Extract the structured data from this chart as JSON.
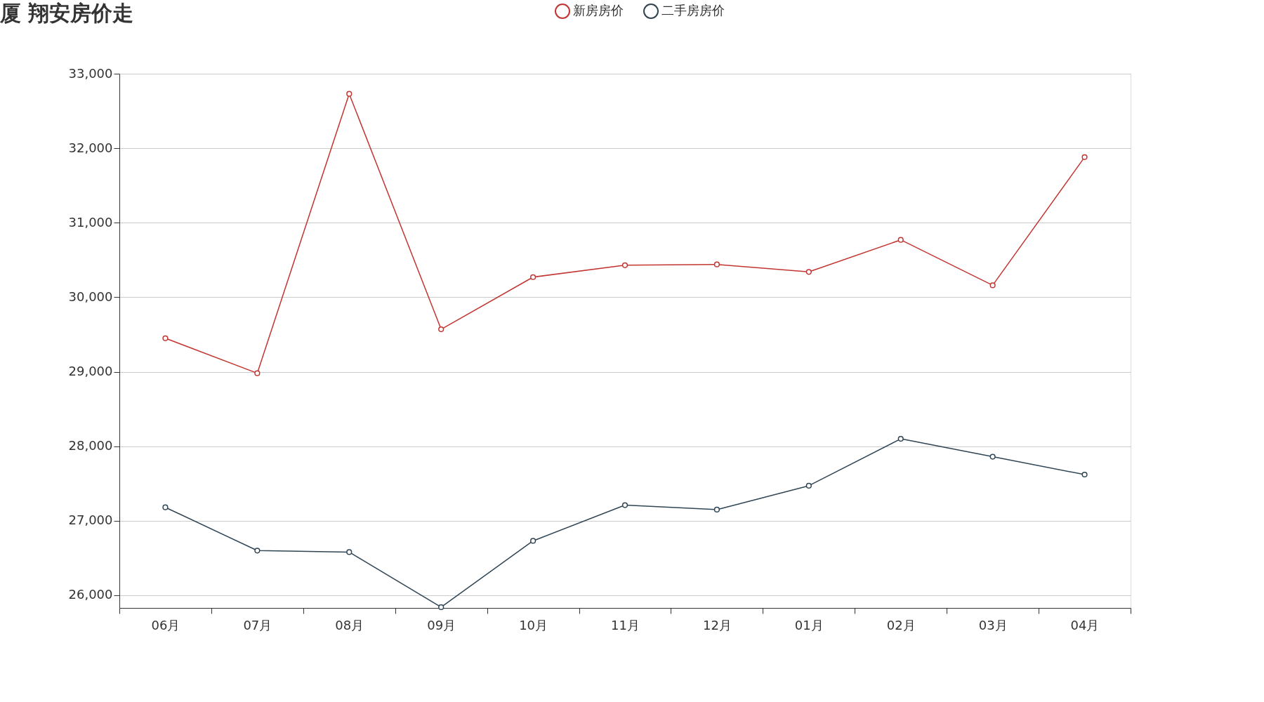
{
  "chart_data": {
    "type": "line",
    "title": "厦 翔安房价走",
    "categories": [
      "06月",
      "07月",
      "08月",
      "09月",
      "10月",
      "11月",
      "12月",
      "01月",
      "02月",
      "03月",
      "04月"
    ],
    "series": [
      {
        "name": "新房房价",
        "color": "#c23531",
        "values": [
          29450,
          28980,
          32730,
          29570,
          30270,
          30430,
          30440,
          30340,
          30770,
          30160,
          31880
        ]
      },
      {
        "name": "二手房房价",
        "color": "#2f4554",
        "values": [
          27180,
          26600,
          26580,
          25840,
          26730,
          27210,
          27150,
          27470,
          28100,
          27860,
          27620
        ]
      }
    ],
    "ylim": [
      25830,
      33000
    ],
    "yticks": [
      {
        "value": 26000,
        "label": "26,000"
      },
      {
        "value": 27000,
        "label": "27,000"
      },
      {
        "value": 28000,
        "label": "28,000"
      },
      {
        "value": 29000,
        "label": "29,000"
      },
      {
        "value": 30000,
        "label": "30,000"
      },
      {
        "value": 31000,
        "label": "31,000"
      },
      {
        "value": 32000,
        "label": "32,000"
      },
      {
        "value": 33000,
        "label": "33,000"
      }
    ],
    "grid": "y",
    "legend": "top",
    "marker": "circle",
    "line_style": "solid"
  }
}
